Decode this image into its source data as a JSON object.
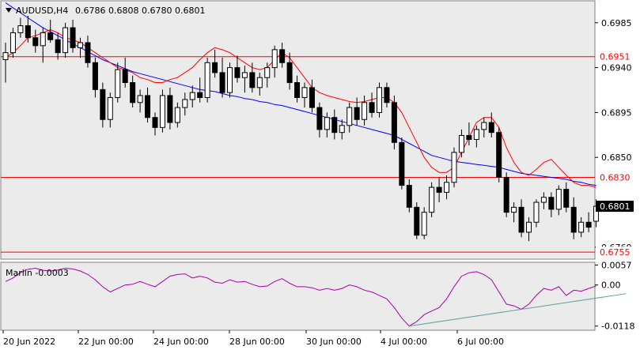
{
  "header": {
    "symbol": "AUDUSD,H4",
    "ohlc": "0.6786 0.6808 0.6780 0.6801"
  },
  "indicator_label": "Marlin -0.0003",
  "colors": {
    "background": "#ffffff",
    "plot_background": "#ebebeb",
    "candle": "#000000",
    "red_line": "#ff0000",
    "blue_ma": "#0000ff",
    "oscillator": "#aa00aa",
    "trendline": "#5f9ea0",
    "level_line": "#ff0000",
    "current_price_label_bg": "#000000"
  },
  "chart_data": [
    {
      "type": "candlestick",
      "title": "AUDUSD,H4",
      "ylim": [
        0.6748,
        0.7007
      ],
      "y_ticks": [
        "0.6985",
        "0.6940",
        "0.6895",
        "0.6850",
        "0.6760"
      ],
      "x_tick_labels": [
        "20 Jun 2022",
        "22 Jun 00:00",
        "24 Jun 00:00",
        "28 Jun 00:00",
        "30 Jun 00:00",
        "4 Jul 00:00",
        "6 Jul 00:00"
      ],
      "levels": [
        {
          "value": 0.6951,
          "label": "0.6951"
        },
        {
          "value": 0.683,
          "label": "0.6830"
        },
        {
          "value": 0.6755,
          "label": "0.6755"
        }
      ],
      "current_price": {
        "value": 0.6801,
        "label": "0.6801"
      },
      "candles": [
        [
          0.6948,
          0.6965,
          0.6925,
          0.6955
        ],
        [
          0.6955,
          0.698,
          0.695,
          0.6975
        ],
        [
          0.6975,
          0.699,
          0.697,
          0.6982
        ],
        [
          0.6982,
          0.6992,
          0.6965,
          0.697
        ],
        [
          0.697,
          0.6978,
          0.6955,
          0.6962
        ],
        [
          0.6962,
          0.698,
          0.6945,
          0.6975
        ],
        [
          0.6975,
          0.6988,
          0.6965,
          0.6968
        ],
        [
          0.6968,
          0.6975,
          0.6948,
          0.6955
        ],
        [
          0.6955,
          0.6985,
          0.695,
          0.698
        ],
        [
          0.698,
          0.6988,
          0.6955,
          0.696
        ],
        [
          0.696,
          0.697,
          0.695,
          0.6965
        ],
        [
          0.6965,
          0.6972,
          0.694,
          0.6945
        ],
        [
          0.6945,
          0.695,
          0.691,
          0.6918
        ],
        [
          0.6918,
          0.6925,
          0.688,
          0.6888
        ],
        [
          0.6888,
          0.6915,
          0.688,
          0.691
        ],
        [
          0.691,
          0.6945,
          0.6905,
          0.6938
        ],
        [
          0.6938,
          0.695,
          0.692,
          0.6925
        ],
        [
          0.6925,
          0.6932,
          0.69,
          0.6905
        ],
        [
          0.6905,
          0.6918,
          0.6895,
          0.6912
        ],
        [
          0.6912,
          0.692,
          0.6885,
          0.689
        ],
        [
          0.689,
          0.6895,
          0.6872,
          0.688
        ],
        [
          0.688,
          0.6918,
          0.6875,
          0.6912
        ],
        [
          0.6912,
          0.692,
          0.6878,
          0.6885
        ],
        [
          0.6885,
          0.6905,
          0.688,
          0.69
        ],
        [
          0.69,
          0.6915,
          0.6892,
          0.6908
        ],
        [
          0.6908,
          0.6922,
          0.69,
          0.6915
        ],
        [
          0.6915,
          0.693,
          0.6905,
          0.691
        ],
        [
          0.691,
          0.695,
          0.6905,
          0.6945
        ],
        [
          0.6945,
          0.6958,
          0.693,
          0.6935
        ],
        [
          0.6935,
          0.695,
          0.691,
          0.6915
        ],
        [
          0.6915,
          0.6945,
          0.691,
          0.694
        ],
        [
          0.694,
          0.6952,
          0.6925,
          0.693
        ],
        [
          0.693,
          0.6942,
          0.6915,
          0.6935
        ],
        [
          0.6935,
          0.6945,
          0.6915,
          0.692
        ],
        [
          0.692,
          0.6935,
          0.6912,
          0.693
        ],
        [
          0.693,
          0.6945,
          0.692,
          0.694
        ],
        [
          0.694,
          0.6962,
          0.693,
          0.6958
        ],
        [
          0.6958,
          0.6965,
          0.694,
          0.6945
        ],
        [
          0.6945,
          0.6955,
          0.6918,
          0.6925
        ],
        [
          0.6925,
          0.6932,
          0.6905,
          0.691
        ],
        [
          0.691,
          0.6925,
          0.69,
          0.692
        ],
        [
          0.692,
          0.6928,
          0.6895,
          0.69
        ],
        [
          0.69,
          0.6905,
          0.687,
          0.6878
        ],
        [
          0.6878,
          0.6895,
          0.687,
          0.689
        ],
        [
          0.689,
          0.6898,
          0.6868,
          0.6875
        ],
        [
          0.6875,
          0.6888,
          0.6868,
          0.6882
        ],
        [
          0.6882,
          0.6905,
          0.6875,
          0.69
        ],
        [
          0.69,
          0.691,
          0.6882,
          0.6888
        ],
        [
          0.6888,
          0.6912,
          0.6882,
          0.6905
        ],
        [
          0.6905,
          0.6915,
          0.689,
          0.6895
        ],
        [
          0.6895,
          0.6925,
          0.689,
          0.692
        ],
        [
          0.692,
          0.6925,
          0.69,
          0.6905
        ],
        [
          0.6905,
          0.6912,
          0.6858,
          0.6865
        ],
        [
          0.6865,
          0.687,
          0.6818,
          0.6822
        ],
        [
          0.6822,
          0.6828,
          0.6795,
          0.68
        ],
        [
          0.68,
          0.6805,
          0.6768,
          0.6772
        ],
        [
          0.6772,
          0.68,
          0.6768,
          0.6795
        ],
        [
          0.6795,
          0.6825,
          0.679,
          0.682
        ],
        [
          0.682,
          0.683,
          0.6805,
          0.6815
        ],
        [
          0.6815,
          0.6832,
          0.6808,
          0.6825
        ],
        [
          0.6825,
          0.686,
          0.682,
          0.6855
        ],
        [
          0.6855,
          0.6878,
          0.685,
          0.6872
        ],
        [
          0.6872,
          0.6885,
          0.6862,
          0.6868
        ],
        [
          0.6868,
          0.6882,
          0.686,
          0.6878
        ],
        [
          0.6878,
          0.689,
          0.687,
          0.6885
        ],
        [
          0.6885,
          0.6895,
          0.687,
          0.6875
        ],
        [
          0.6875,
          0.688,
          0.6825,
          0.683
        ],
        [
          0.683,
          0.6835,
          0.679,
          0.6795
        ],
        [
          0.6795,
          0.6805,
          0.6785,
          0.68
        ],
        [
          0.68,
          0.6808,
          0.677,
          0.6775
        ],
        [
          0.6775,
          0.679,
          0.6766,
          0.6785
        ],
        [
          0.6785,
          0.6808,
          0.678,
          0.6805
        ],
        [
          0.6805,
          0.6815,
          0.6798,
          0.681
        ],
        [
          0.681,
          0.6815,
          0.679,
          0.6798
        ],
        [
          0.6798,
          0.6822,
          0.6792,
          0.6818
        ],
        [
          0.6818,
          0.6825,
          0.6795,
          0.68
        ],
        [
          0.68,
          0.681,
          0.6768,
          0.6775
        ],
        [
          0.6775,
          0.679,
          0.677,
          0.6785
        ],
        [
          0.6785,
          0.6795,
          0.6775,
          0.678
        ],
        [
          0.6786,
          0.6808,
          0.678,
          0.6801
        ]
      ],
      "red_line": [
        0.695,
        0.6955,
        0.6962,
        0.697,
        0.6972,
        0.6975,
        0.6978,
        0.6975,
        0.697,
        0.6968,
        0.6965,
        0.696,
        0.6955,
        0.695,
        0.6945,
        0.694,
        0.6938,
        0.6935,
        0.693,
        0.6928,
        0.6925,
        0.6925,
        0.6928,
        0.693,
        0.6935,
        0.694,
        0.6948,
        0.6955,
        0.696,
        0.6958,
        0.6955,
        0.695,
        0.6945,
        0.694,
        0.6938,
        0.694,
        0.6948,
        0.6955,
        0.695,
        0.694,
        0.693,
        0.692,
        0.6915,
        0.6912,
        0.691,
        0.6908,
        0.6906,
        0.6905,
        0.6906,
        0.6908,
        0.691,
        0.691,
        0.6905,
        0.6895,
        0.688,
        0.6865,
        0.685,
        0.684,
        0.6835,
        0.6835,
        0.684,
        0.6855,
        0.687,
        0.6885,
        0.689,
        0.689,
        0.688,
        0.686,
        0.6845,
        0.6835,
        0.6832,
        0.6838,
        0.6845,
        0.6848,
        0.684,
        0.6832,
        0.6825,
        0.6822,
        0.6822,
        0.682
      ],
      "blue_ma": [
        0.7005,
        0.7,
        0.6995,
        0.699,
        0.6985,
        0.698,
        0.6976,
        0.6972,
        0.6968,
        0.6964,
        0.696,
        0.6956,
        0.6952,
        0.6948,
        0.6945,
        0.6942,
        0.6939,
        0.6936,
        0.6934,
        0.6932,
        0.693,
        0.6928,
        0.6926,
        0.6924,
        0.6922,
        0.692,
        0.6918,
        0.6917,
        0.6916,
        0.6914,
        0.6912,
        0.6911,
        0.6909,
        0.6908,
        0.6906,
        0.6905,
        0.6903,
        0.6902,
        0.69,
        0.6898,
        0.6896,
        0.6894,
        0.6892,
        0.689,
        0.6888,
        0.6886,
        0.6884,
        0.6882,
        0.688,
        0.6878,
        0.6876,
        0.6874,
        0.6872,
        0.6868,
        0.6864,
        0.686,
        0.6856,
        0.6852,
        0.685,
        0.6848,
        0.6846,
        0.6845,
        0.6844,
        0.6843,
        0.6842,
        0.6841,
        0.684,
        0.6838,
        0.6836,
        0.6834,
        0.6833,
        0.6832,
        0.6831,
        0.683,
        0.6829,
        0.6828,
        0.6826,
        0.6825,
        0.6823,
        0.6822
      ]
    },
    {
      "type": "line",
      "title": "Marlin -0.0003",
      "ylim": [
        -0.013,
        0.0065
      ],
      "y_ticks": [
        "0.0057",
        "0.00",
        "-0.0118"
      ],
      "series": [
        {
          "name": "Marlin",
          "values": [
            0.001,
            0.002,
            0.0035,
            0.0045,
            0.0048,
            0.0042,
            0.004,
            0.0043,
            0.0048,
            0.0046,
            0.004,
            0.003,
            0.0015,
            -0.0005,
            -0.002,
            -0.001,
            0.0,
            0.0002,
            0.001,
            0.0002,
            -0.0005,
            0.001,
            0.0025,
            0.003,
            0.0032,
            0.002,
            0.0025,
            0.002,
            0.0008,
            0.0005,
            0.0015,
            0.0008,
            0.001,
            0.0002,
            -0.0005,
            -0.0003,
            0.001,
            0.0018,
            0.0005,
            -0.0005,
            -0.0005,
            -0.0008,
            -0.0015,
            -0.001,
            -0.0015,
            -0.001,
            0.0,
            -0.0005,
            -0.0015,
            -0.002,
            -0.003,
            -0.004,
            -0.0065,
            -0.0095,
            -0.0118,
            -0.0105,
            -0.0085,
            -0.0075,
            -0.0065,
            -0.004,
            -0.0005,
            0.0025,
            0.0035,
            0.0038,
            0.003,
            0.0015,
            -0.002,
            -0.0055,
            -0.006,
            -0.007,
            -0.0055,
            -0.003,
            -0.001,
            -0.0015,
            -0.0005,
            -0.003,
            -0.0015,
            -0.0018,
            -0.001,
            -0.0003
          ]
        },
        {
          "name": "trendline",
          "from": [
            54,
            -0.0118
          ],
          "to": [
            83,
            -0.0025
          ]
        }
      ]
    }
  ]
}
